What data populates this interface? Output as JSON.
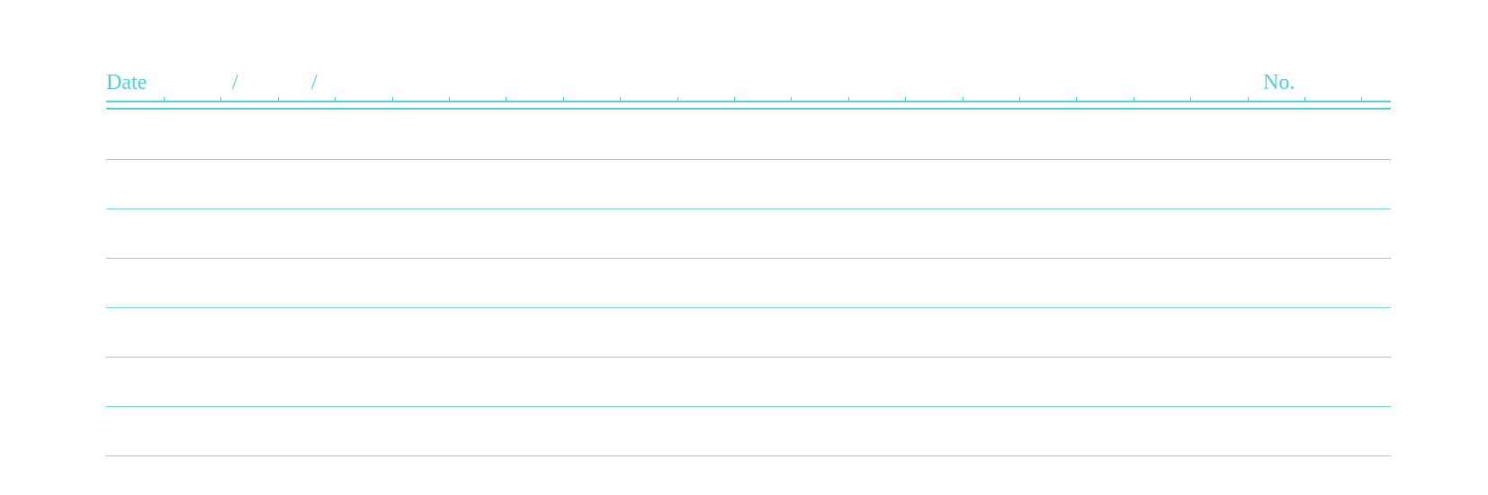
{
  "page": {
    "accent_color": "#4fd0d2",
    "line_color": "#77dcdc",
    "background": "#ffffff"
  },
  "header": {
    "date_label": "Date",
    "date_separator_1": "/",
    "date_separator_2": "/",
    "number_label": "No."
  },
  "ruled_lines_count": 7
}
